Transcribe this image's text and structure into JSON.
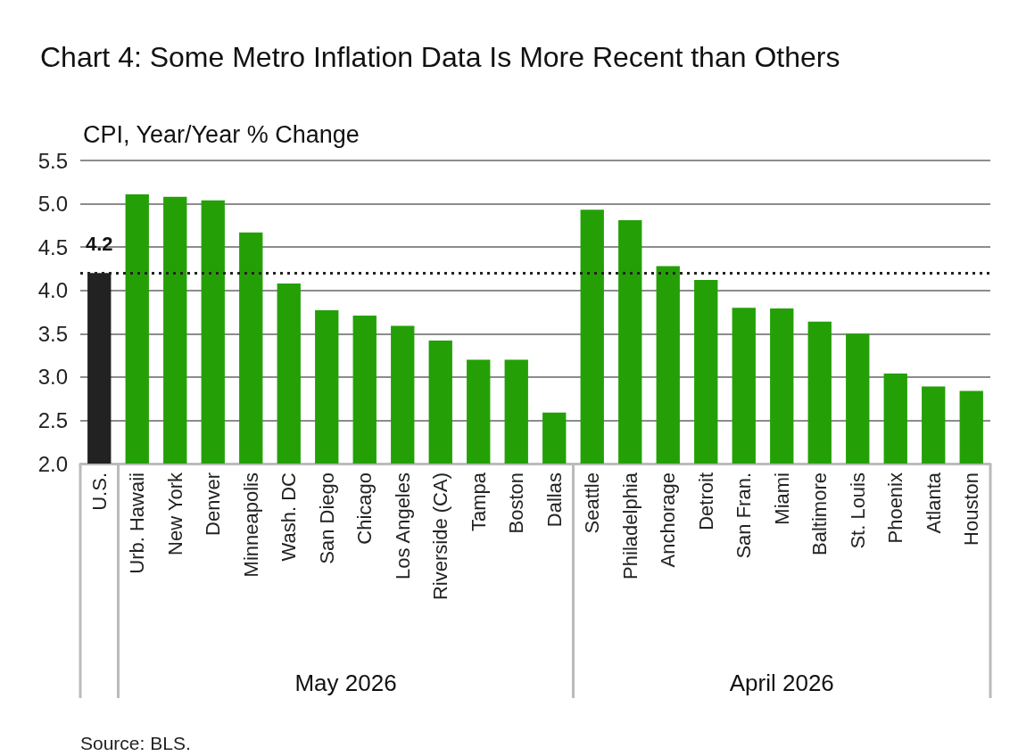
{
  "chart_data": {
    "type": "bar",
    "title": "Chart 4: Some Metro Inflation Data Is More Recent than Others",
    "ylabel": "CPI, Year/Year % Change",
    "categories": [
      "U.S.",
      "Urb. Hawaii",
      "New York",
      "Denver",
      "Minneapolis",
      "Wash. DC",
      "San Diego",
      "Chicago",
      "Los Angeles",
      "Riverside (CA)",
      "Tampa",
      "Boston",
      "Dallas",
      "Seattle",
      "Philadelphia",
      "Anchorage",
      "Detroit",
      "San Fran.",
      "Miami",
      "Baltimore",
      "St. Louis",
      "Phoenix",
      "Atlanta",
      "Houston"
    ],
    "values": [
      4.2,
      5.11,
      5.08,
      5.04,
      4.67,
      4.08,
      3.77,
      3.71,
      3.59,
      3.42,
      3.2,
      3.2,
      2.59,
      4.93,
      4.81,
      4.28,
      4.12,
      3.8,
      3.79,
      3.64,
      3.5,
      3.04,
      2.89,
      2.84
    ],
    "colors": [
      "#222222",
      "#24a006",
      "#24a006",
      "#24a006",
      "#24a006",
      "#24a006",
      "#24a006",
      "#24a006",
      "#24a006",
      "#24a006",
      "#24a006",
      "#24a006",
      "#24a006",
      "#24a006",
      "#24a006",
      "#24a006",
      "#24a006",
      "#24a006",
      "#24a006",
      "#24a006",
      "#24a006",
      "#24a006",
      "#24a006",
      "#24a006"
    ],
    "value_labels": [
      "4.2",
      null,
      null,
      null,
      null,
      null,
      null,
      null,
      null,
      null,
      null,
      null,
      null,
      null,
      null,
      null,
      null,
      null,
      null,
      null,
      null,
      null,
      null,
      null
    ],
    "ylim": [
      2.0,
      5.5
    ],
    "yticks": [
      {
        "value": 2,
        "label": "2.0"
      },
      {
        "value": 2.5,
        "label": "2.5"
      },
      {
        "value": 3,
        "label": "3.0"
      },
      {
        "value": 3.5,
        "label": "3.5"
      },
      {
        "value": 4,
        "label": "4.0"
      },
      {
        "value": 4.5,
        "label": "4.5"
      },
      {
        "value": 5,
        "label": "5.0"
      },
      {
        "value": 5.5,
        "label": "5.5"
      }
    ],
    "grid": "y",
    "ref_lines": [
      {
        "axis": "y",
        "value": 4.2,
        "color": "#222222",
        "line_style": "dotted"
      }
    ],
    "annotations": [
      "May 2026",
      "April 2026",
      "Source: BLS."
    ]
  }
}
